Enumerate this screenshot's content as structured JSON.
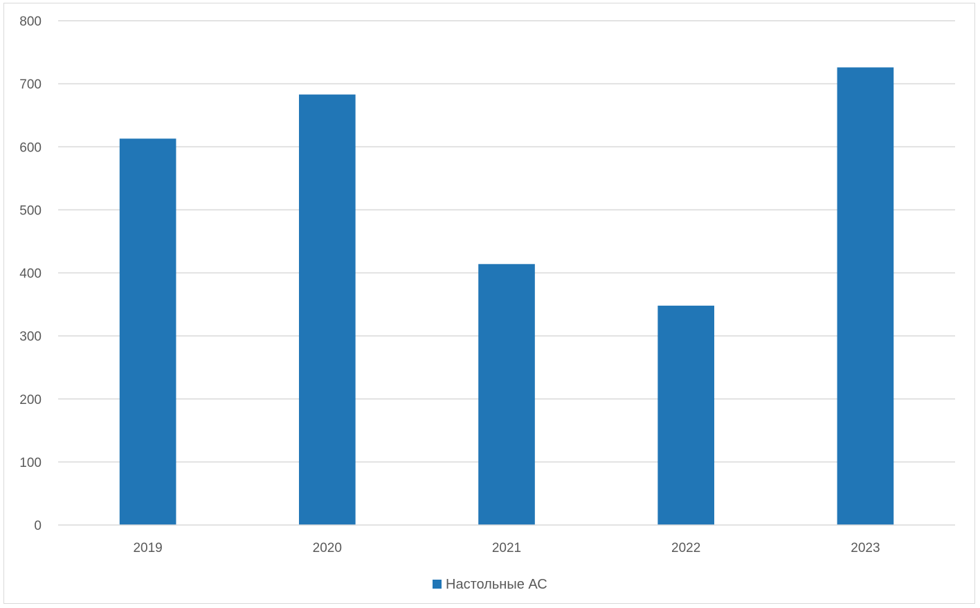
{
  "chart_data": {
    "type": "bar",
    "categories": [
      "2019",
      "2020",
      "2021",
      "2022",
      "2023"
    ],
    "series": [
      {
        "name": "Настольные АС",
        "values": [
          613,
          683,
          414,
          348,
          726
        ],
        "color": "#2176b6"
      }
    ],
    "ylim": [
      0,
      800
    ],
    "yticks": [
      "0",
      "100",
      "200",
      "300",
      "400",
      "500",
      "600",
      "700",
      "800"
    ],
    "grid": true,
    "legend_position": "bottom"
  }
}
